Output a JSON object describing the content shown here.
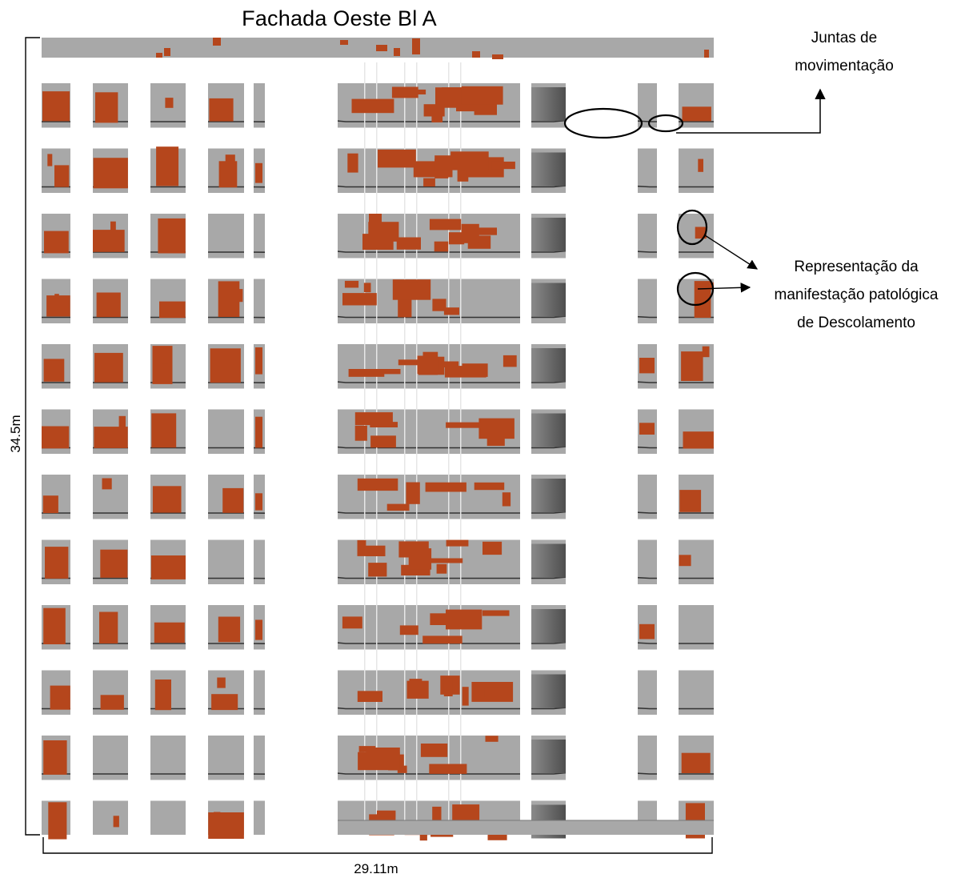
{
  "figure": {
    "title": "Fachada Oeste Bl A",
    "height_dimension": "34.5m",
    "width_dimension": "29.11m",
    "annotation_joints": [
      "Juntas de",
      "movimentação"
    ],
    "annotation_pathology": [
      "Representação da",
      "manifestação patológica",
      "de Descolamento"
    ]
  },
  "colors": {
    "cladding": "#a8a8a8",
    "detachment": "#b5461c",
    "opening": "#ffffff",
    "dark_panel": "#6a6a6a",
    "joint_line": "#333333"
  },
  "legend": {
    "detachment": "detachment-hatch",
    "movement_joint": "joint-line"
  }
}
